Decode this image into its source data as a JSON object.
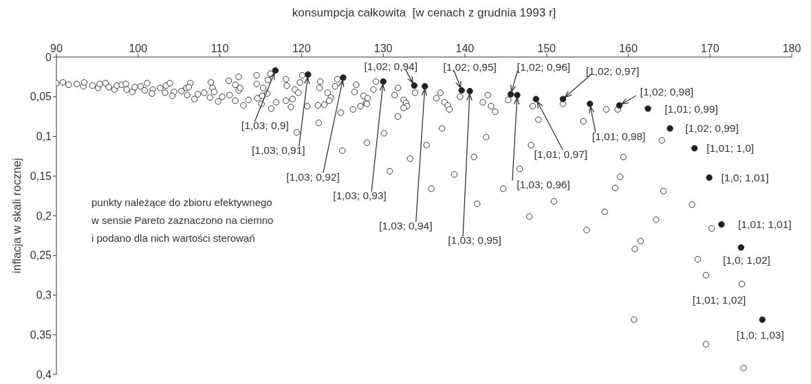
{
  "chart_data": {
    "type": "scatter",
    "xlabel": "konsumpcja całkowita  [w cenach z grudnia 1993 r]",
    "ylabel": "inflacja w skali rocznej",
    "xlim": [
      90,
      180
    ],
    "xticks": [
      90,
      100,
      110,
      120,
      130,
      140,
      150,
      160,
      170,
      180
    ],
    "ylim": [
      0.4,
      0
    ],
    "yticks": [
      0,
      {
        "value": 0.05,
        "label": "0,05"
      },
      {
        "value": 0.1,
        "label": "0,1"
      },
      {
        "value": 0.15,
        "label": "0,15"
      },
      {
        "value": 0.2,
        "label": "0,2"
      },
      {
        "value": 0.25,
        "label": "0,25"
      },
      {
        "value": 0.3,
        "label": "0,3"
      },
      {
        "value": 0.35,
        "label": "0,35"
      },
      {
        "value": 0.4,
        "label": "0,4"
      }
    ],
    "marker": "circle",
    "series": [
      {
        "color": "#ffffff",
        "x": [
          90.0,
          90.8,
          91.5,
          92.5,
          93.3,
          93.4,
          94.4,
          95.1,
          95.3,
          96.0,
          96.4,
          97.1,
          97.4,
          98.0,
          98.5,
          98.6,
          99.3,
          99.6,
          100.3,
          100.8,
          101.1,
          101.8,
          101.7,
          102.7,
          103.3,
          103.4,
          103.9,
          104.4,
          104.2,
          105.3,
          106.0,
          105.9,
          106.4,
          106.2,
          106.9,
          107.3,
          108.1,
          108.8,
          108.9,
          109.1,
          109.3,
          109.8,
          110.3,
          111.1,
          111.2,
          111.9,
          111.9,
          112.3,
          112.3,
          112.5,
          112.9,
          113.5,
          114.5,
          114.5,
          114.6,
          115.1,
          115.3,
          115.2,
          115.8,
          115.9,
          116.2,
          116.3,
          116.9,
          118.1,
          118.1,
          118.2,
          118.7,
          119.2,
          119.6,
          118.9,
          119.8,
          120.1,
          120.7,
          119.4,
          122.1,
          125.0,
          122.3,
          122.2,
          122.0,
          122.8,
          123.2,
          123.6,
          123.4,
          124.1,
          124.4,
          124.8,
          126.3,
          126.5,
          126.7,
          127.2,
          127.6,
          127.9,
          128.1,
          128.0,
          128.8,
          129.1,
          128.0,
          130.1,
          131.4,
          131.8,
          131.8,
          132.5,
          132.8,
          132.9,
          132.5,
          133.9,
          133.3,
          135.3,
          136.5,
          137.0,
          137.5,
          137.9,
          138.1,
          137.2,
          139.4,
          141.1,
          142.2,
          142.8,
          143.2,
          143.7,
          142.6,
          145.3,
          148.3,
          149.0,
          148.1,
          146.7,
          152.0,
          154.5,
          157.3,
          158.7,
          164.1,
          159.4,
          159.0,
          158.4,
          164.3,
          130.8,
          135.9,
          138.7,
          141.5,
          144.7,
          150.9,
          147.9,
          157.1,
          154.9,
          167.8,
          163.4,
          170.2,
          161.5,
          160.8,
          168.5,
          169.5,
          173.9,
          160.7,
          169.5,
          174.1
        ],
        "values": [
          0.033,
          0.032,
          0.035,
          0.034,
          0.037,
          0.032,
          0.036,
          0.039,
          0.034,
          0.033,
          0.038,
          0.041,
          0.036,
          0.035,
          0.034,
          0.041,
          0.044,
          0.038,
          0.037,
          0.042,
          0.033,
          0.041,
          0.046,
          0.039,
          0.045,
          0.036,
          0.033,
          0.044,
          0.049,
          0.043,
          0.048,
          0.039,
          0.033,
          0.038,
          0.053,
          0.047,
          0.045,
          0.051,
          0.032,
          0.039,
          0.044,
          0.056,
          0.05,
          0.03,
          0.048,
          0.055,
          0.035,
          0.025,
          0.042,
          0.039,
          0.061,
          0.054,
          0.023,
          0.034,
          0.052,
          0.059,
          0.039,
          0.049,
          0.046,
          0.029,
          0.021,
          0.065,
          0.057,
          0.055,
          0.028,
          0.036,
          0.063,
          0.041,
          0.045,
          0.053,
          0.032,
          0.023,
          0.062,
          0.095,
          0.083,
          0.118,
          0.031,
          0.039,
          0.061,
          0.06,
          0.045,
          0.051,
          0.055,
          0.037,
          0.028,
          0.07,
          0.066,
          0.044,
          0.035,
          0.062,
          0.049,
          0.058,
          0.052,
          0.059,
          0.041,
          0.031,
          0.108,
          0.096,
          0.048,
          0.039,
          0.075,
          0.054,
          0.058,
          0.062,
          0.064,
          0.045,
          0.128,
          0.111,
          0.052,
          0.045,
          0.057,
          0.061,
          0.066,
          0.09,
          0.05,
          0.126,
          0.057,
          0.048,
          0.062,
          0.069,
          0.101,
          0.054,
          0.062,
          0.079,
          0.111,
          0.141,
          0.059,
          0.081,
          0.066,
          0.066,
          0.105,
          0.126,
          0.151,
          0.165,
          0.169,
          0.144,
          0.166,
          0.148,
          0.185,
          0.166,
          0.182,
          0.201,
          0.195,
          0.218,
          0.186,
          0.205,
          0.216,
          0.232,
          0.242,
          0.255,
          0.275,
          0.286,
          0.331,
          0.362,
          0.392
        ]
      },
      {
        "color": "#222222",
        "x": [
          116.8,
          120.8,
          125.1,
          130.0,
          133.8,
          135.1,
          139.6,
          140.6,
          145.6,
          146.4,
          148.7,
          152.0,
          155.3,
          158.9,
          162.4,
          165.1,
          168.1,
          169.9,
          171.4,
          173.8,
          176.4
        ],
        "values": [
          0.017,
          0.022,
          0.026,
          0.031,
          0.036,
          0.037,
          0.042,
          0.043,
          0.047,
          0.048,
          0.053,
          0.053,
          0.059,
          0.061,
          0.065,
          0.09,
          0.115,
          0.152,
          0.211,
          0.24,
          0.331
        ]
      }
    ],
    "annotations": [
      {
        "text": "[1,03; 0,9]",
        "x": 116.8,
        "y": 0.017
      },
      {
        "text": "[1,03; 0,91]",
        "x": 120.8,
        "y": 0.022
      },
      {
        "text": "[1,03; 0,92]",
        "x": 125.1,
        "y": 0.026
      },
      {
        "text": "[1,03; 0,93]",
        "x": 130.0,
        "y": 0.031
      },
      {
        "text": "[1,02; 0,94]",
        "x": 133.8,
        "y": 0.036
      },
      {
        "text": "[1,03; 0,94]",
        "x": 135.1,
        "y": 0.037
      },
      {
        "text": "[1,02; 0,95]",
        "x": 139.6,
        "y": 0.042
      },
      {
        "text": "[1,03; 0,95]",
        "x": 140.6,
        "y": 0.043
      },
      {
        "text": "[1,02; 0,96]",
        "x": 145.6,
        "y": 0.047
      },
      {
        "text": "[1,03; 0,96]",
        "x": 146.4,
        "y": 0.048
      },
      {
        "text": "[1,01; 0,97]",
        "x": 148.7,
        "y": 0.053
      },
      {
        "text": "[1,02; 0,97]",
        "x": 152.0,
        "y": 0.053
      },
      {
        "text": "[1,01; 0,98]",
        "x": 155.3,
        "y": 0.059
      },
      {
        "text": "[1,02; 0,98]",
        "x": 158.9,
        "y": 0.061
      },
      {
        "text": "[1,01; 0,99]",
        "x": 162.4,
        "y": 0.065
      },
      {
        "text": "[1,02; 0,99]",
        "x": 165.1,
        "y": 0.09
      },
      {
        "text": "[1,01; 1,0]",
        "x": 168.1,
        "y": 0.115
      },
      {
        "text": "[1,0; 1,01]",
        "x": 169.9,
        "y": 0.152
      },
      {
        "text": "[1,01; 1,01]",
        "x": 171.4,
        "y": 0.211
      },
      {
        "text": "[1,0; 1,02]",
        "x": 173.8,
        "y": 0.24
      },
      {
        "text": "[1,01; 1,02]",
        "x": 173.9,
        "y": 0.286
      },
      {
        "text": "[1,0; 1,03]",
        "x": 176.4,
        "y": 0.331
      },
      "punkty należące do zbioru efektywnego\nw sensie Pareto zaznaczono na ciemno\ni podano dla nich wartości sterowań"
    ]
  }
}
